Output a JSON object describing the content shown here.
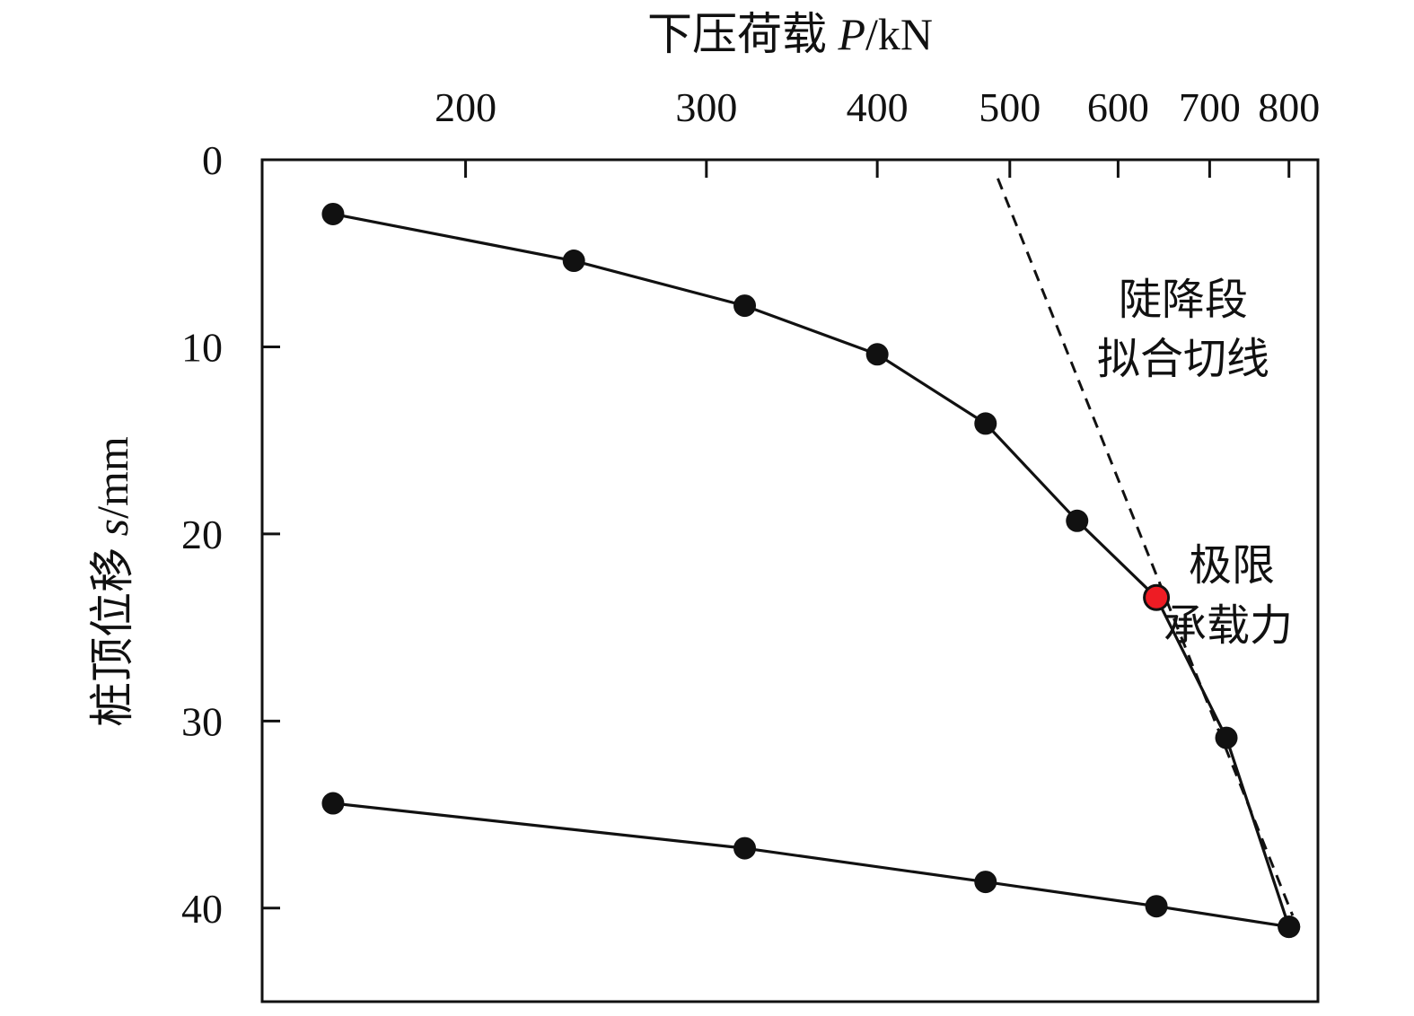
{
  "chart_data": {
    "type": "line",
    "x_axis": {
      "label_prefix": "下压荷载 ",
      "label_symbol": "P",
      "label_unit": "/kN",
      "scale": "log",
      "position": "top",
      "range": [
        142,
        840
      ],
      "ticks": [
        200,
        300,
        400,
        500,
        600,
        700,
        800
      ],
      "tick_labels": [
        "200",
        "300",
        "400",
        "500",
        "600",
        "700",
        "800"
      ]
    },
    "y_axis": {
      "label_prefix": "桩顶位移 ",
      "label_symbol": "s",
      "label_unit": "/mm",
      "inverted": true,
      "range": [
        0,
        45
      ],
      "ticks": [
        0,
        10,
        20,
        30,
        40
      ],
      "tick_labels": [
        "0",
        "10",
        "20",
        "30",
        "40"
      ]
    },
    "grid": false,
    "series": [
      {
        "role": "loading",
        "color": "#111111",
        "points": [
          {
            "x": 160,
            "y": 2.9
          },
          {
            "x": 240,
            "y": 5.4
          },
          {
            "x": 320,
            "y": 7.8
          },
          {
            "x": 400,
            "y": 10.4
          },
          {
            "x": 480,
            "y": 14.1
          },
          {
            "x": 560,
            "y": 19.3
          },
          {
            "x": 640,
            "y": 23.4
          },
          {
            "x": 720,
            "y": 30.9
          },
          {
            "x": 800,
            "y": 41.0
          }
        ]
      },
      {
        "role": "unloading",
        "color": "#111111",
        "points": [
          {
            "x": 800,
            "y": 41.0
          },
          {
            "x": 640,
            "y": 39.9
          },
          {
            "x": 480,
            "y": 38.6
          },
          {
            "x": 320,
            "y": 36.8
          },
          {
            "x": 160,
            "y": 34.4
          }
        ]
      }
    ],
    "tangent_line": {
      "style": "dashed",
      "color": "#111111",
      "from": {
        "x": 490,
        "y": 1.0
      },
      "to": {
        "x": 805,
        "y": 40.4
      }
    },
    "highlight_point": {
      "x": 640,
      "y": 23.4,
      "color": "#ee1c24"
    },
    "annotations": {
      "tangent_label": [
        "陡降段",
        "拟合切线"
      ],
      "ultimate_label": [
        "极限",
        "承载力"
      ]
    }
  }
}
